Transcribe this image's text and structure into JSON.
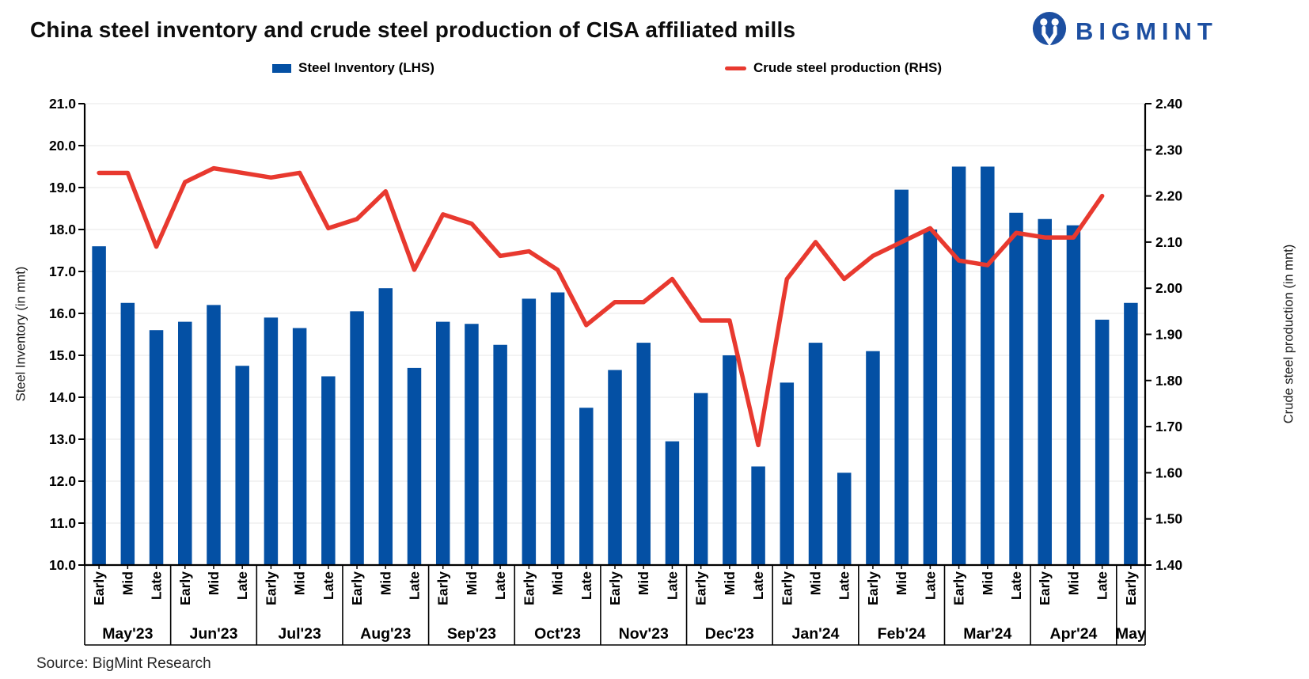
{
  "header": {
    "title": "China steel inventory and crude steel production of CISA affiliated mills",
    "brand": "BIGMINT"
  },
  "legend": {
    "items": [
      {
        "label": "Steel Inventory (LHS)",
        "type": "bar"
      },
      {
        "label": "Crude steel production (RHS)",
        "type": "line"
      }
    ]
  },
  "source": "Source: BigMint Research",
  "colors": {
    "bar": "#0450a4",
    "line": "#e8392f",
    "logo": "#1d4fa1",
    "grid": "#ececec",
    "axis": "#000000"
  },
  "chart_data": {
    "type": "bar+line combo",
    "title": "China steel inventory and crude steel production of CISA affiliated mills",
    "legend_position": "top",
    "grid": true,
    "left_axis": {
      "title": "Steel Inventory (in mnt)",
      "min": 10.0,
      "max": 21.0,
      "step": 1.0,
      "ticks": [
        "21.0",
        "20.0",
        "19.0",
        "18.0",
        "17.0",
        "16.0",
        "15.0",
        "14.0",
        "13.0",
        "12.0",
        "11.0",
        "10.0"
      ]
    },
    "right_axis": {
      "title": "Crude steel production (in mnt)",
      "min": 1.4,
      "max": 2.4,
      "step": 0.1,
      "ticks": [
        "2.40",
        "2.30",
        "2.20",
        "2.10",
        "2.00",
        "1.90",
        "1.80",
        "1.70",
        "1.60",
        "1.50",
        "1.40"
      ]
    },
    "groups": [
      {
        "label": "May'23",
        "periods": [
          "Early",
          "Mid",
          "Late"
        ]
      },
      {
        "label": "Jun'23",
        "periods": [
          "Early",
          "Mid",
          "Late"
        ]
      },
      {
        "label": "Jul'23",
        "periods": [
          "Early",
          "Mid",
          "Late"
        ]
      },
      {
        "label": "Aug'23",
        "periods": [
          "Early",
          "Mid",
          "Late"
        ]
      },
      {
        "label": "Sep'23",
        "periods": [
          "Early",
          "Mid",
          "Late"
        ]
      },
      {
        "label": "Oct'23",
        "periods": [
          "Early",
          "Mid",
          "Late"
        ]
      },
      {
        "label": "Nov'23",
        "periods": [
          "Early",
          "Mid",
          "Late"
        ]
      },
      {
        "label": "Dec'23",
        "periods": [
          "Early",
          "Mid",
          "Late"
        ]
      },
      {
        "label": "Jan'24",
        "periods": [
          "Early",
          "Mid",
          "Late"
        ]
      },
      {
        "label": "Feb'24",
        "periods": [
          "Early",
          "Mid",
          "Late"
        ]
      },
      {
        "label": "Mar'24",
        "periods": [
          "Early",
          "Mid",
          "Late"
        ]
      },
      {
        "label": "Apr'24",
        "periods": [
          "Early",
          "Mid",
          "Late"
        ]
      },
      {
        "label": "May",
        "periods": [
          "Early"
        ]
      }
    ],
    "series": [
      {
        "name": "Steel Inventory (LHS)",
        "type": "bar",
        "axis": "left",
        "values": [
          17.6,
          16.25,
          15.6,
          15.8,
          16.2,
          14.75,
          15.9,
          15.65,
          14.5,
          16.05,
          16.6,
          14.7,
          15.8,
          15.75,
          15.25,
          16.35,
          16.5,
          13.75,
          14.65,
          15.3,
          12.95,
          14.1,
          15.0,
          12.35,
          14.35,
          15.3,
          12.2,
          15.1,
          18.95,
          18.0,
          19.5,
          19.5,
          18.4,
          18.25,
          18.1,
          15.85,
          16.25
        ]
      },
      {
        "name": "Crude steel production (RHS)",
        "type": "line",
        "axis": "right",
        "values": [
          2.25,
          2.25,
          2.09,
          2.23,
          2.26,
          2.25,
          2.24,
          2.25,
          2.13,
          2.15,
          2.21,
          2.04,
          2.16,
          2.14,
          2.07,
          2.08,
          2.04,
          1.92,
          1.97,
          1.97,
          2.02,
          1.93,
          1.93,
          1.66,
          2.02,
          2.1,
          2.02,
          2.07,
          2.1,
          2.13,
          2.06,
          2.05,
          2.12,
          2.11,
          2.11,
          2.2,
          null
        ]
      }
    ]
  }
}
